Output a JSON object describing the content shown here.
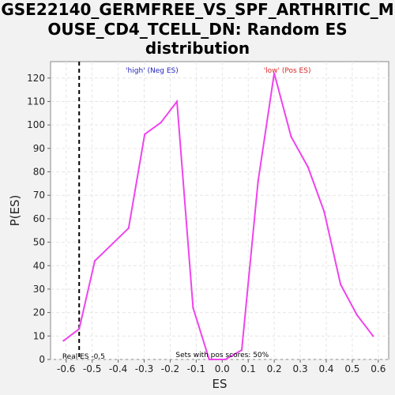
{
  "chart_data": {
    "type": "line",
    "title_lines": [
      "GSE22140_GERMFREE_VS_SPF_ARTHRITIC_M",
      "OUSE_CD4_TCELL_DN: Random ES",
      "distribution"
    ],
    "xlabel": "ES",
    "ylabel": "P(ES)",
    "xlim": [
      -0.66,
      0.64
    ],
    "ylim": [
      0,
      127
    ],
    "x_ticks": [
      -0.6,
      -0.5,
      -0.4,
      -0.3,
      -0.2,
      -0.1,
      0.0,
      0.1,
      0.2,
      0.3,
      0.4,
      0.5,
      0.6
    ],
    "x_tick_labels": [
      "-0.6",
      "-0.5",
      "-0.4",
      "-0.3",
      "-0.2",
      "-0.1",
      "0.0",
      "0.1",
      "0.2",
      "0.3",
      "0.4",
      "0.5",
      "0.6"
    ],
    "y_ticks": [
      0,
      10,
      20,
      30,
      40,
      50,
      60,
      70,
      80,
      90,
      100,
      110,
      120
    ],
    "y_tick_labels": [
      "0",
      "10",
      "20",
      "30",
      "40",
      "50",
      "60",
      "70",
      "80",
      "90",
      "100",
      "110",
      "120"
    ],
    "grid": true,
    "series": [
      {
        "color": "#ee44ee",
        "x": [
          -0.61,
          -0.55,
          -0.49,
          -0.36,
          -0.298,
          -0.236,
          -0.174,
          -0.112,
          -0.05,
          0.012,
          0.075,
          0.138,
          0.2,
          0.265,
          0.33,
          0.392,
          0.455,
          0.518,
          0.58
        ],
        "y": [
          8,
          13,
          42,
          56,
          96,
          101,
          110,
          22,
          0,
          0,
          4,
          76,
          122,
          95,
          82,
          63,
          32,
          19,
          10
        ]
      }
    ],
    "real_es": {
      "x": -0.55,
      "label": "Real ES -0.5"
    },
    "annotations": {
      "high": {
        "text": "'high' (Neg ES)",
        "color": "#2222bb"
      },
      "low": {
        "text": "'low' (Pos ES)",
        "color": "#dd2222"
      },
      "pos_scores": {
        "text": "Sets with pos scores: 50%"
      }
    }
  }
}
